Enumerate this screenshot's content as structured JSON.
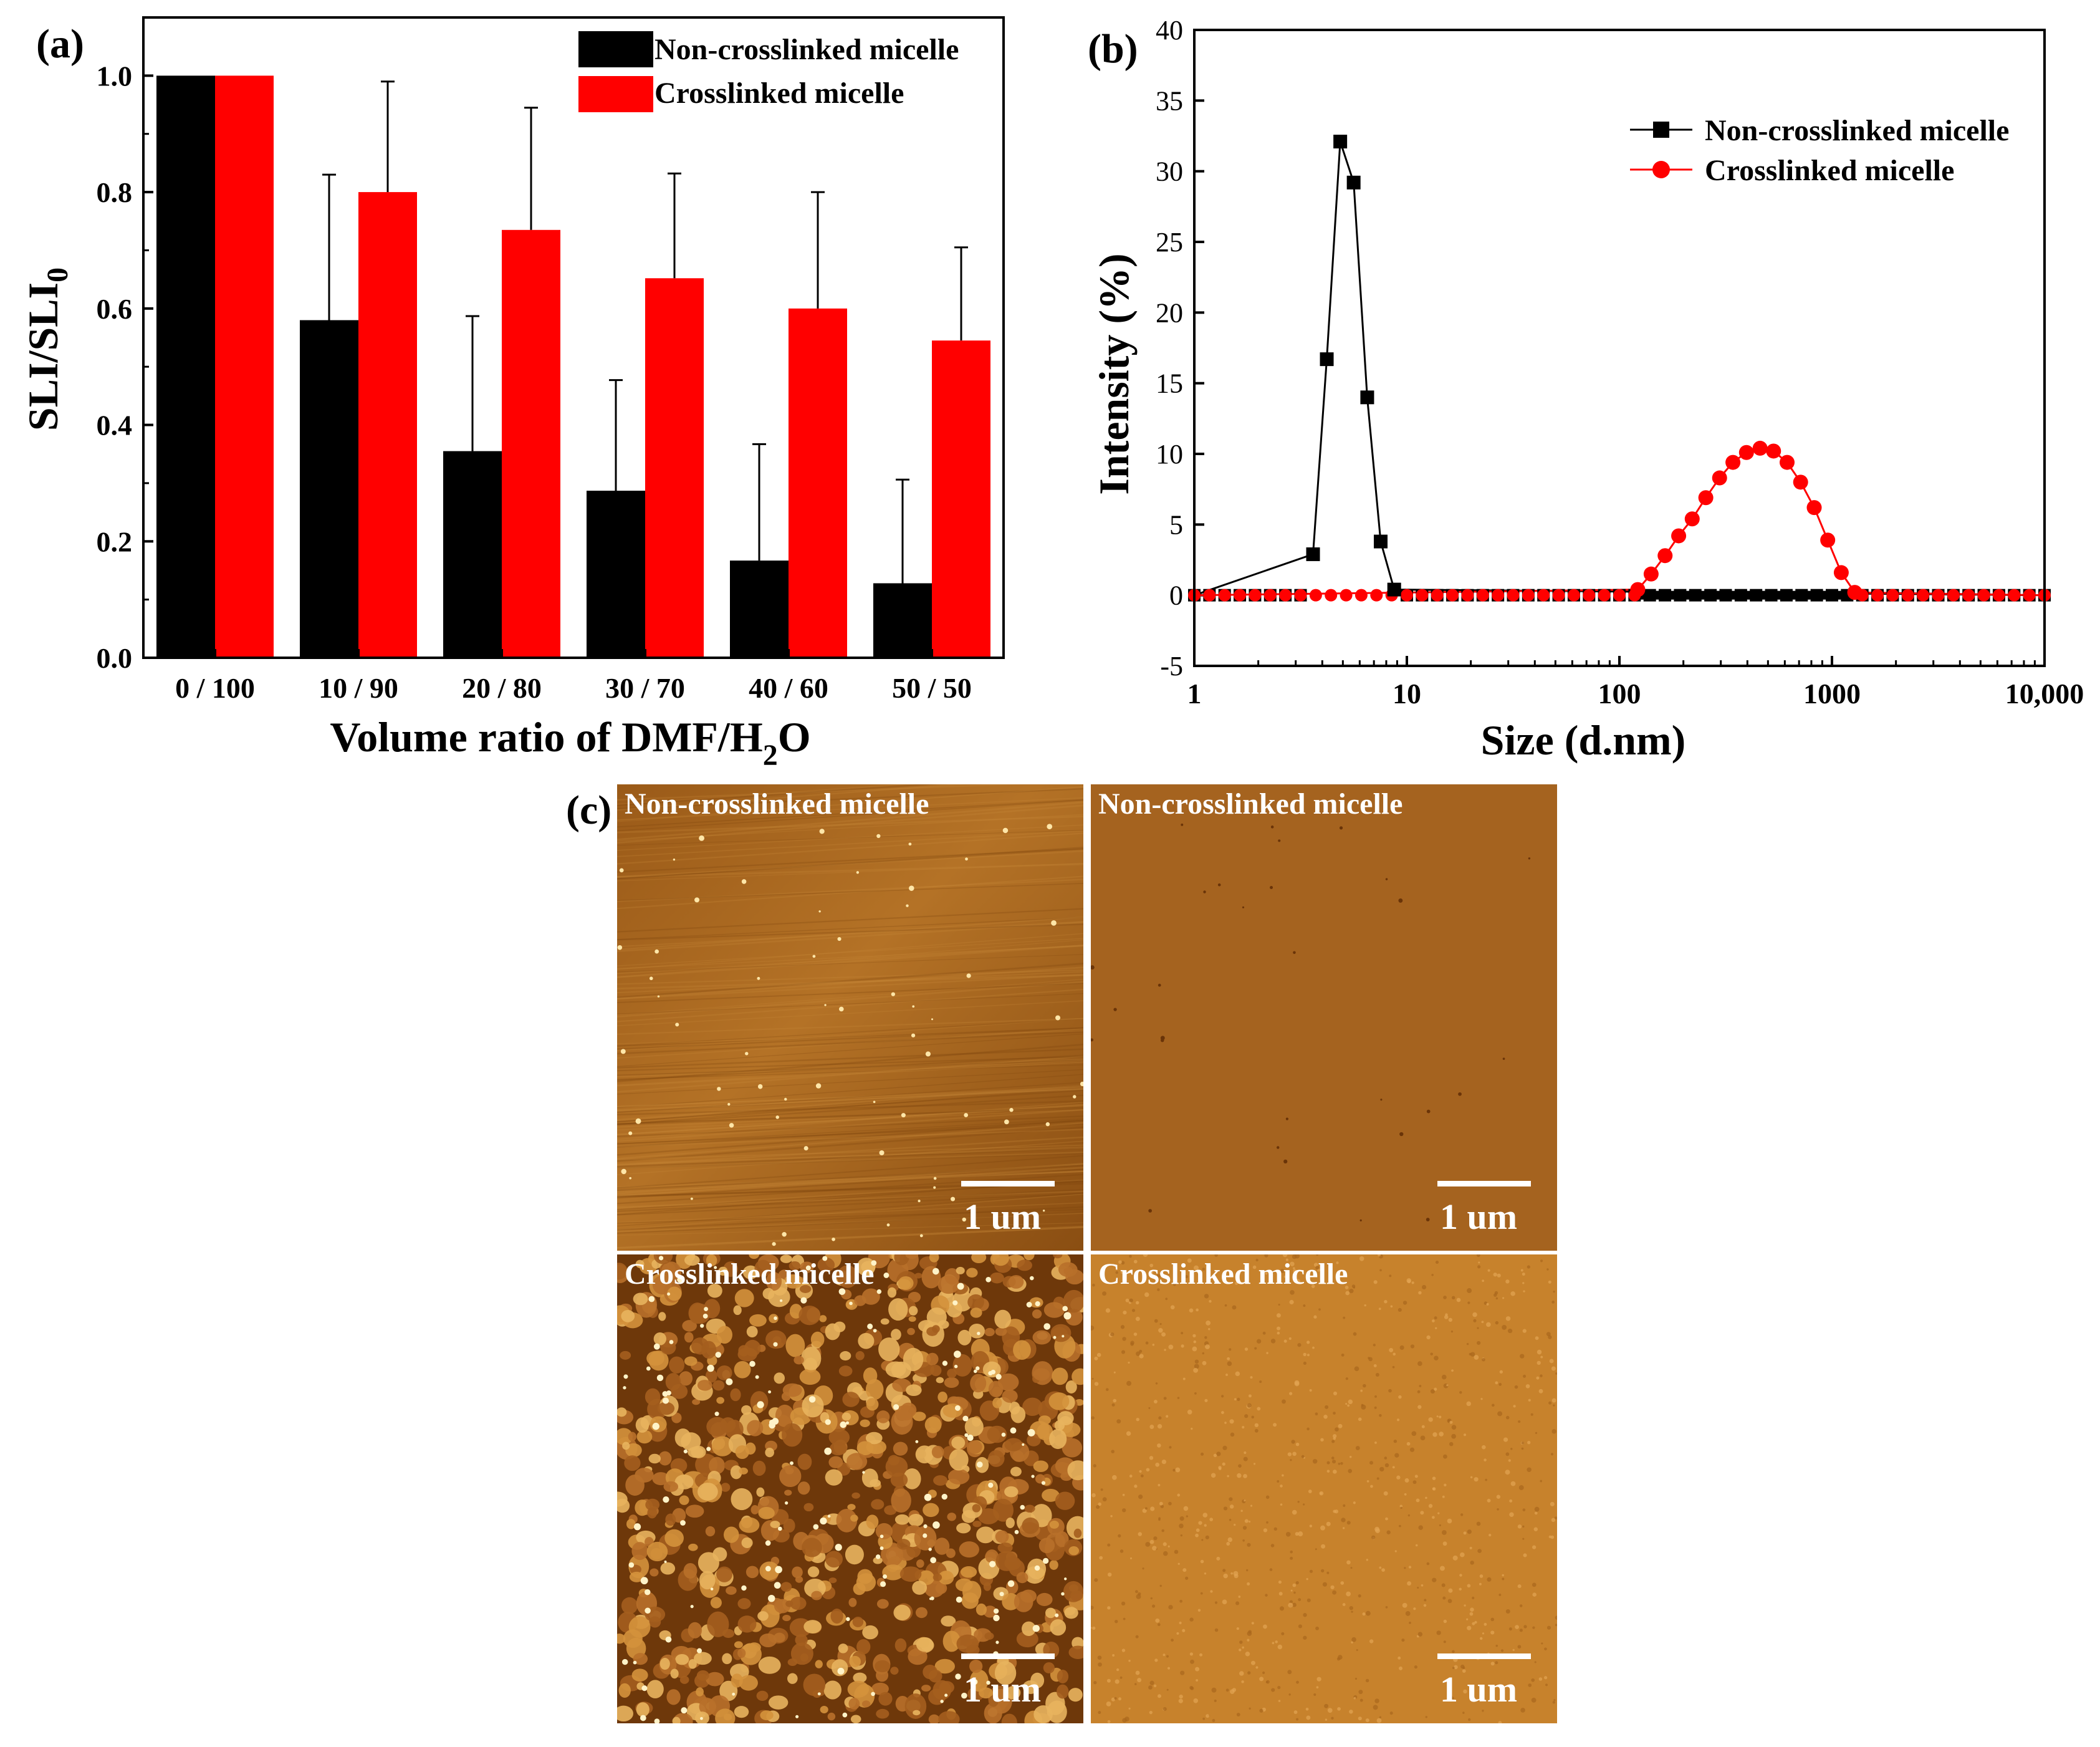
{
  "panel_labels": {
    "a": "(a)",
    "b": "(b)",
    "c": "(c)"
  },
  "colors": {
    "noncrosslinked": "#000000",
    "crosslinked": "#ff0000"
  },
  "chart_data": [
    {
      "id": "a",
      "type": "bar",
      "title": "",
      "xlabel": "Volume ratio of DMF/H2O",
      "xlabel_parts": {
        "before": "Volume ratio of DMF/H",
        "sub": "2",
        "after": "O"
      },
      "ylabel": "SLI/SLI0",
      "ylabel_parts": {
        "main": "SLI/SLI",
        "sub": "0"
      },
      "categories": [
        "0 / 100",
        "10 / 90",
        "20 / 80",
        "30 / 70",
        "40 / 60",
        "50 / 50"
      ],
      "ylim": [
        0,
        1.1
      ],
      "yticks": [
        "0.0",
        "0.2",
        "0.4",
        "0.6",
        "0.8",
        "1.0"
      ],
      "legend_position": "top-right",
      "series": [
        {
          "name": "Non-crosslinked micelle",
          "color": "#000000",
          "values": [
            1.0,
            0.58,
            0.355,
            0.287,
            0.167,
            0.128
          ],
          "errors": [
            0,
            0.25,
            0.232,
            0.19,
            0.2,
            0.178
          ]
        },
        {
          "name": "Crosslinked micelle",
          "color": "#ff0000",
          "values": [
            1.0,
            0.8,
            0.735,
            0.652,
            0.6,
            0.545
          ],
          "errors": [
            0,
            0.19,
            0.21,
            0.18,
            0.2,
            0.16
          ]
        }
      ]
    },
    {
      "id": "b",
      "type": "line",
      "title": "",
      "xlabel": "Size (d.nm)",
      "ylabel": "Intensity (%)",
      "xscale": "log",
      "xlim": [
        1,
        10000
      ],
      "ylim": [
        -5,
        40
      ],
      "xticks": [
        "1",
        "10",
        "100",
        "1000",
        "10,000"
      ],
      "yticks": [
        "-5",
        "0",
        "5",
        "10",
        "15",
        "20",
        "25",
        "30",
        "35",
        "40"
      ],
      "legend_position": "top-right",
      "series": [
        {
          "name": "Non-crosslinked micelle",
          "color": "#000000",
          "marker": "square",
          "x": [
            3.62,
            4.2,
            4.86,
            5.62,
            6.51,
            7.53,
            8.72
          ],
          "y": [
            2.9,
            16.7,
            32.1,
            29.2,
            14.0,
            3.8,
            0.4
          ]
        },
        {
          "name": "Crosslinked micelle",
          "color": "#ff0000",
          "marker": "circle",
          "x": [
            122,
            141,
            164,
            190,
            220,
            255,
            296,
            342,
            396,
            459,
            531,
            615,
            712,
            825,
            955,
            1106,
            1280
          ],
          "y": [
            0.4,
            1.5,
            2.8,
            4.2,
            5.4,
            6.9,
            8.3,
            9.4,
            10.1,
            10.4,
            10.2,
            9.4,
            8.0,
            6.2,
            3.9,
            1.6,
            0.2
          ]
        }
      ]
    }
  ],
  "afm": {
    "tl_label": "Non-crosslinked micelle",
    "tr_label": "Non-crosslinked micelle",
    "bl_label": "Crosslinked micelle",
    "br_label": "Crosslinked micelle",
    "scale": "1 um"
  }
}
